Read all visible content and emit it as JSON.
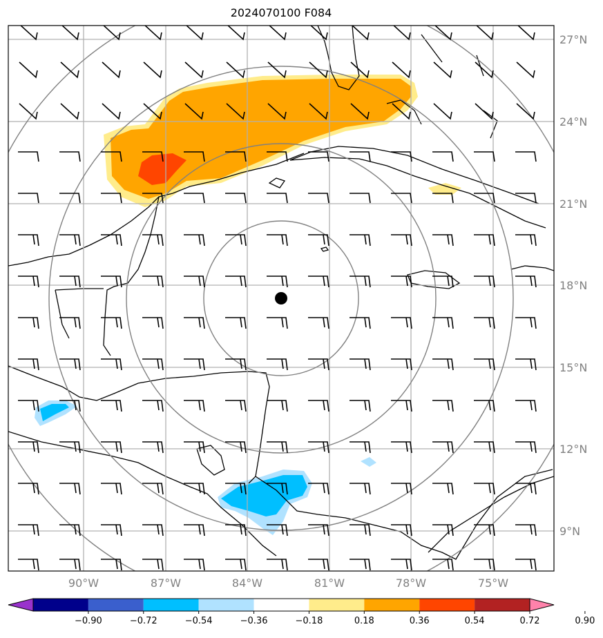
{
  "title": "2024070100 F084",
  "lat_labels": [
    "27°N",
    "24°N",
    "21°N",
    "18°N",
    "15°N",
    "12°N",
    "9°N"
  ],
  "lon_labels": [
    "90°W",
    "87°W",
    "84°W",
    "81°W",
    "78°W",
    "75°W"
  ],
  "colorbar": {
    "ticks": [
      "−0.90",
      "−0.72",
      "−0.54",
      "−0.36",
      "−0.18",
      "0.18",
      "0.36",
      "0.54",
      "0.72",
      "0.90"
    ],
    "colors": [
      "#9932cc",
      "#00008b",
      "#3a5fcd",
      "#00bfff",
      "#b0e2ff",
      "#ffffff",
      "#ffec8b",
      "#ffa500",
      "#ff4500",
      "#b22222",
      "#ff82ab"
    ]
  },
  "map": {
    "center_marker": "storm-center",
    "colors": {
      "positive_fill": "#ffa500",
      "positive_light": "#ffec8b",
      "positive_strong": "#ff4500",
      "negative_fill": "#00bfff",
      "negative_light": "#b0e2ff",
      "grid": "#b0b0b0",
      "range_rings": "#808080"
    }
  }
}
